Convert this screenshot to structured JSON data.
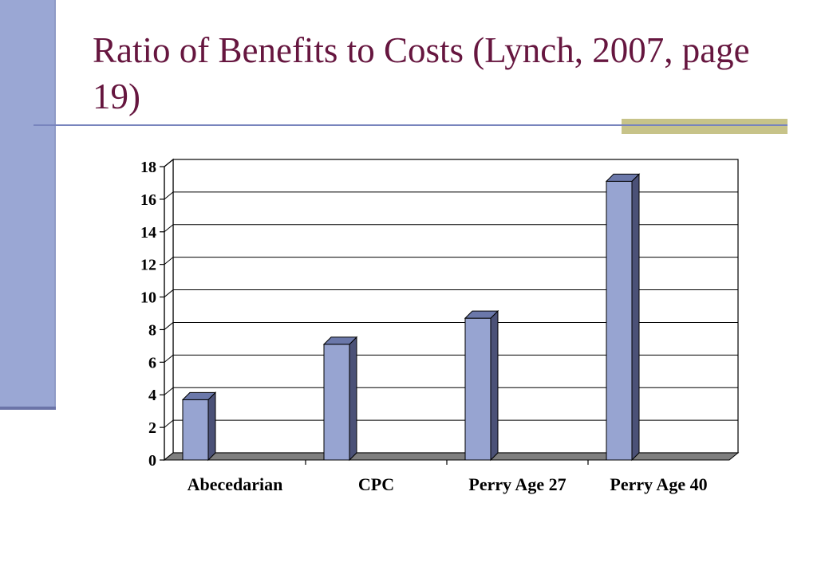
{
  "slide": {
    "title": "Ratio of Benefits to Costs (Lynch, 2007, page 19)"
  },
  "colors": {
    "title": "#66163f",
    "accent_bar": "#9aa7d4",
    "accent_gold": "#c7c389",
    "bar_front": "#97a4d1",
    "bar_side": "#4b5177",
    "bar_top": "#6b78aa",
    "floor": "#7f7f7f"
  },
  "chart_data": {
    "type": "bar",
    "categories": [
      "Abecedarian",
      "CPC",
      "Perry Age 27",
      "Perry Age 40"
    ],
    "values": [
      3.7,
      7.1,
      8.7,
      17.1
    ],
    "ylim": [
      0,
      18
    ],
    "yticks": [
      "0",
      "2",
      "4",
      "6",
      "8",
      "10",
      "12",
      "14",
      "16",
      "18"
    ],
    "grid": true,
    "three_d": true,
    "title": "",
    "xlabel": "",
    "ylabel": ""
  }
}
